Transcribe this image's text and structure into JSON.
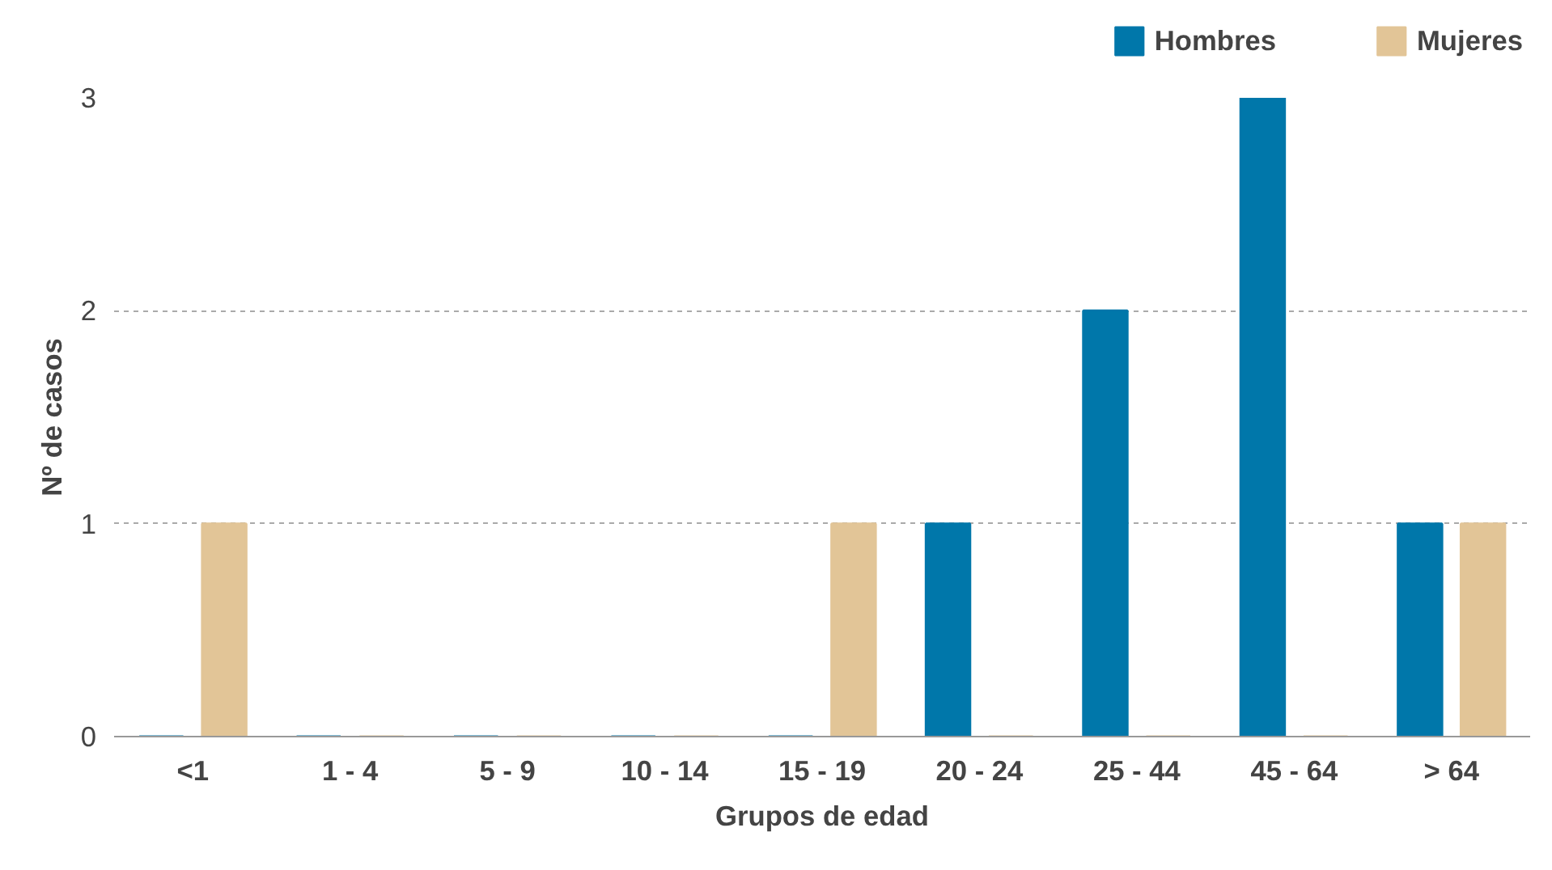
{
  "chart_data": {
    "type": "bar",
    "xlabel": "Grupos de edad",
    "ylabel": "Nº de casos",
    "categories": [
      "<1",
      "1 - 4",
      "5 - 9",
      "10 - 14",
      "15 - 19",
      "20 - 24",
      "25 - 44",
      "45 - 64",
      "> 64"
    ],
    "series": [
      {
        "name": "Hombres",
        "color": "#0077aa",
        "values": [
          0,
          0,
          0,
          0,
          0,
          1,
          2,
          3,
          1
        ]
      },
      {
        "name": "Mujeres",
        "color": "#e2c597",
        "values": [
          1,
          0,
          0,
          0,
          1,
          0,
          0,
          0,
          1
        ]
      }
    ],
    "ylim": [
      0,
      3
    ],
    "yticks": [
      0,
      1,
      2,
      3
    ],
    "grid": "y",
    "legend": "top right"
  }
}
